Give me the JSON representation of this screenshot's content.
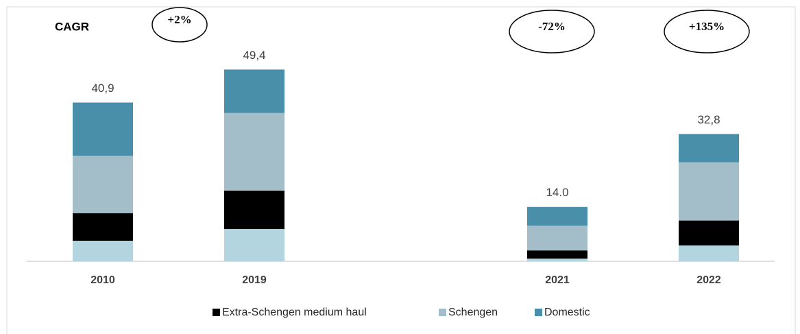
{
  "chart_data": {
    "type": "stacked_bar",
    "categories": [
      "2010",
      "2019",
      "2021",
      "2022"
    ],
    "series": [
      {
        "color": "#b3d5df",
        "values": [
          5.3,
          8.3,
          0.7,
          4.1
        ]
      },
      {
        "name": "Extra-Schengen medium haul",
        "color": "#000000",
        "values": [
          7.1,
          9.9,
          2.1,
          6.4
        ]
      },
      {
        "name": "Schengen",
        "color": "#a3bec8",
        "values": [
          14.8,
          20.0,
          6.4,
          15.0
        ]
      },
      {
        "name": "Domestic",
        "color": "#4a8fa9",
        "values": [
          13.7,
          11.2,
          4.8,
          7.3
        ]
      }
    ],
    "totals": [
      40.9,
      49.4,
      14.0,
      32.8
    ],
    "total_labels": [
      "40,9",
      "49,4",
      "14.0",
      "32,8"
    ],
    "annotations": [
      {
        "text": "CAGR"
      },
      {
        "text": "+2%"
      },
      {
        "text": "-72%"
      },
      {
        "text": "+135%"
      }
    ],
    "legend": "bottom"
  }
}
